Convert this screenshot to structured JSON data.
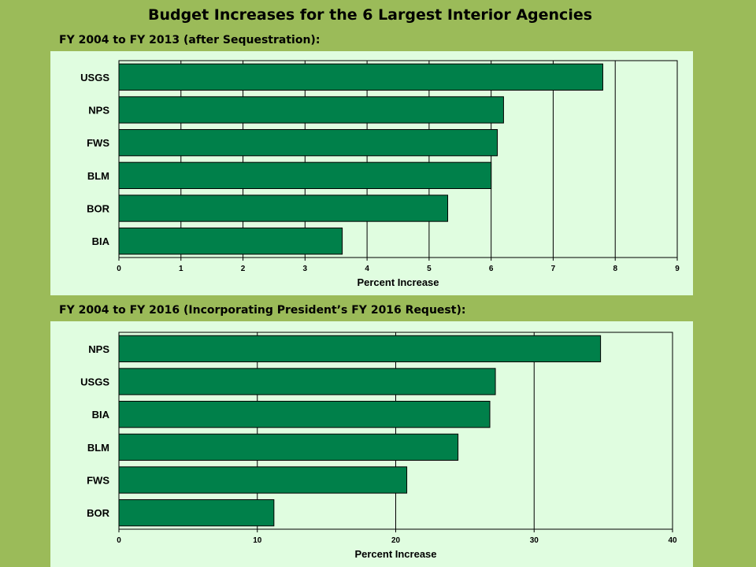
{
  "title": "Budget Increases for the 6 Largest Interior Agencies",
  "colors": {
    "background": "#9bbb59",
    "plot_background": "#e0fde0",
    "bar": "#00804a"
  },
  "chart_data": [
    {
      "type": "bar",
      "orientation": "horizontal",
      "title": "FY 2004 to FY 2013 (after Sequestration):",
      "categories": [
        "USGS",
        "NPS",
        "FWS",
        "BLM",
        "BOR",
        "BIA"
      ],
      "values": [
        7.8,
        6.2,
        6.1,
        6.0,
        5.3,
        3.6
      ],
      "xlabel": "Percent Increase",
      "xlim": [
        0,
        9
      ],
      "xticks": [
        0,
        1,
        2,
        3,
        4,
        5,
        6,
        7,
        8,
        9
      ],
      "grid": "vertical"
    },
    {
      "type": "bar",
      "orientation": "horizontal",
      "title": "FY 2004 to FY 2016 (Incorporating President’s FY 2016 Request):",
      "categories": [
        "NPS",
        "USGS",
        "BIA",
        "BLM",
        "FWS",
        "BOR"
      ],
      "values": [
        34.8,
        27.2,
        26.8,
        24.5,
        20.8,
        11.2
      ],
      "xlabel": "Percent Increase",
      "xlim": [
        0,
        40
      ],
      "xticks": [
        0,
        10,
        20,
        30,
        40
      ],
      "grid": "vertical"
    }
  ]
}
